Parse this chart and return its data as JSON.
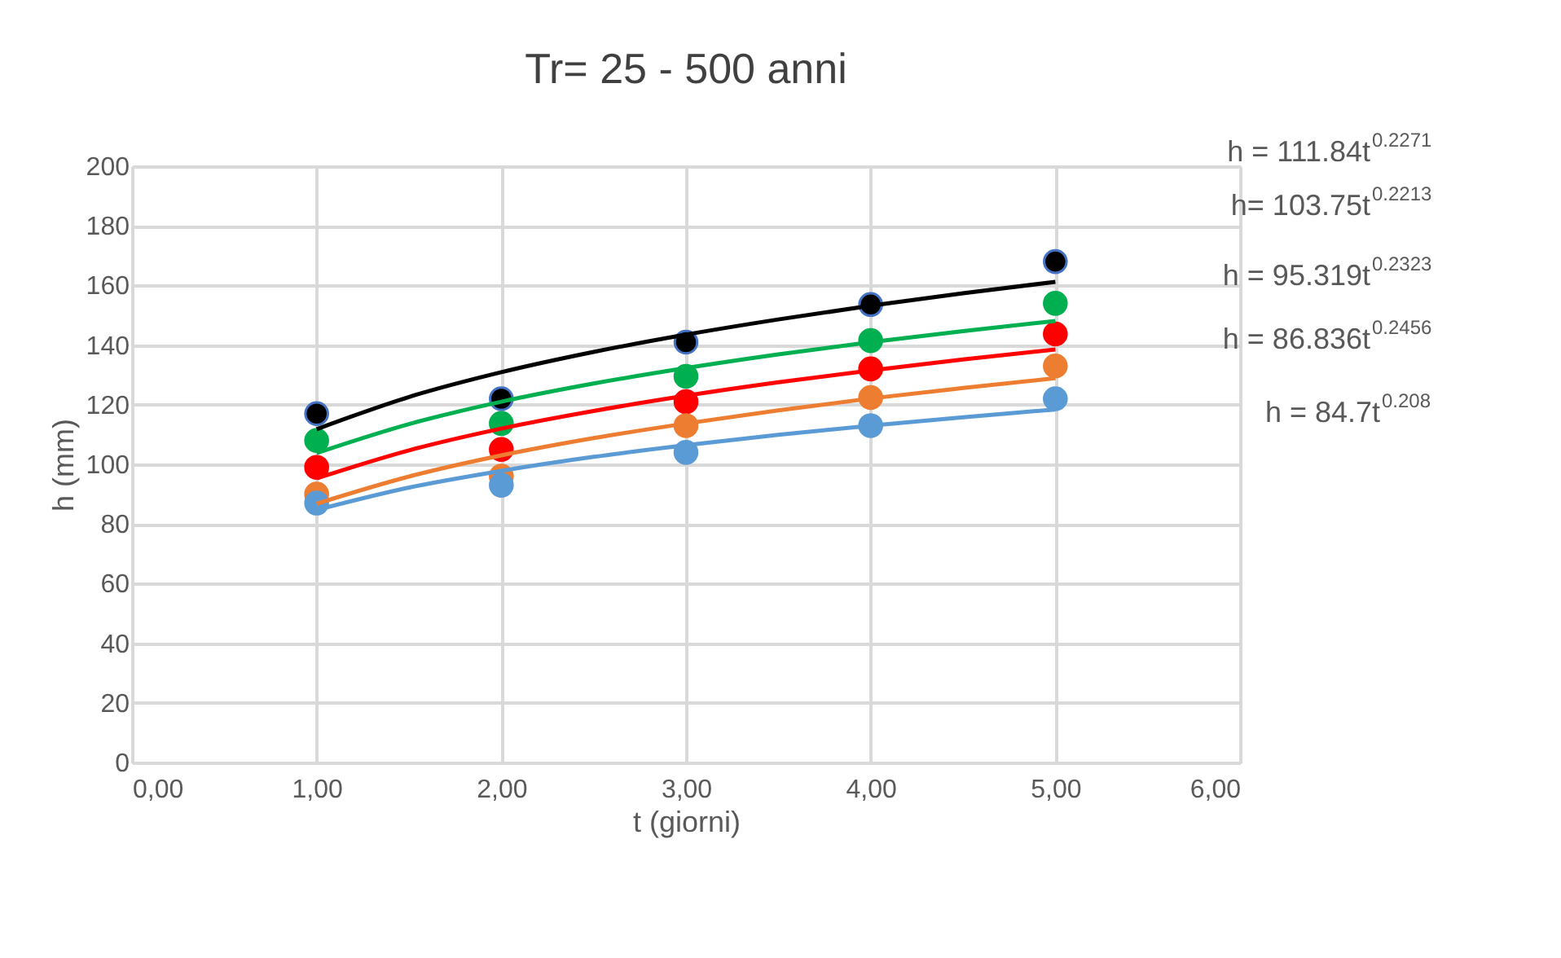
{
  "chart_data": {
    "type": "scatter",
    "title": "Tr= 25 - 500 anni",
    "xlabel": "t (giorni)",
    "ylabel": "h (mm)",
    "xlim": [
      0,
      6
    ],
    "ylim": [
      0,
      200
    ],
    "xticks": [
      {
        "value": 0,
        "label": "0,00"
      },
      {
        "value": 1,
        "label": "1,00"
      },
      {
        "value": 2,
        "label": "2,00"
      },
      {
        "value": 3,
        "label": "3,00"
      },
      {
        "value": 4,
        "label": "4,00"
      },
      {
        "value": 5,
        "label": "5,00"
      },
      {
        "value": 6,
        "label": "6,00"
      }
    ],
    "yticks": [
      0,
      20,
      40,
      60,
      80,
      100,
      120,
      140,
      160,
      180,
      200
    ],
    "grid": true,
    "x": [
      1,
      2,
      3,
      4,
      5
    ],
    "series": [
      {
        "color": "#000000",
        "marker": "circle",
        "values": [
          117,
          122,
          141,
          153.6,
          168
        ]
      },
      {
        "color": "#00b050",
        "marker": "circle",
        "values": [
          108,
          113.7,
          129.5,
          141.5,
          154
        ]
      },
      {
        "color": "#ff0000",
        "marker": "circle",
        "values": [
          99,
          105,
          121,
          132,
          143.7
        ]
      },
      {
        "color": "#ed7d31",
        "marker": "circle",
        "values": [
          90,
          96,
          113,
          122.4,
          133
        ]
      },
      {
        "color": "#5b9bd5",
        "marker": "circle",
        "values": [
          87,
          93,
          104,
          113,
          122
        ]
      },
      {
        "type": "line",
        "color": "#000000",
        "x": [
          1,
          1.5,
          2,
          2.5,
          3,
          3.5,
          4,
          4.5,
          5
        ],
        "values": [
          111.8,
          122.6,
          130.9,
          137.7,
          143.5,
          148.6,
          153.2,
          157.4,
          161.2
        ]
      },
      {
        "type": "line",
        "color": "#00b050",
        "x": [
          1,
          1.5,
          2,
          2.5,
          3,
          3.5,
          4,
          4.5,
          5
        ],
        "values": [
          103.8,
          113.5,
          121.0,
          127.1,
          132.3,
          136.9,
          141.0,
          144.7,
          148.1
        ]
      },
      {
        "type": "line",
        "color": "#ff0000",
        "x": [
          1,
          1.5,
          2,
          2.5,
          3,
          3.5,
          4,
          4.5,
          5
        ],
        "values": [
          95.3,
          104.7,
          112.0,
          117.9,
          123.0,
          127.5,
          131.5,
          135.2,
          138.5
        ]
      },
      {
        "type": "line",
        "color": "#ed7d31",
        "x": [
          1,
          1.5,
          2,
          2.5,
          3,
          3.5,
          4,
          4.5,
          5
        ],
        "values": [
          86.8,
          95.9,
          103.0,
          108.8,
          113.7,
          118.1,
          122.1,
          125.6,
          128.9
        ]
      },
      {
        "type": "line",
        "color": "#5b9bd5",
        "x": [
          1,
          1.5,
          2,
          2.5,
          3,
          3.5,
          4,
          4.5,
          5
        ],
        "values": [
          84.7,
          92.2,
          97.8,
          102.5,
          106.4,
          109.9,
          113.0,
          115.8,
          118.4
        ]
      }
    ],
    "annotations": [
      "h = 111.84t$^{0.2271}$",
      "h= 103.75t$^{0.2213}$",
      "h = 95.319t$^{0.2323}$",
      "h = 86.836t$^{0.2456}$",
      "h = 84.7t$^{0.208}$"
    ]
  }
}
